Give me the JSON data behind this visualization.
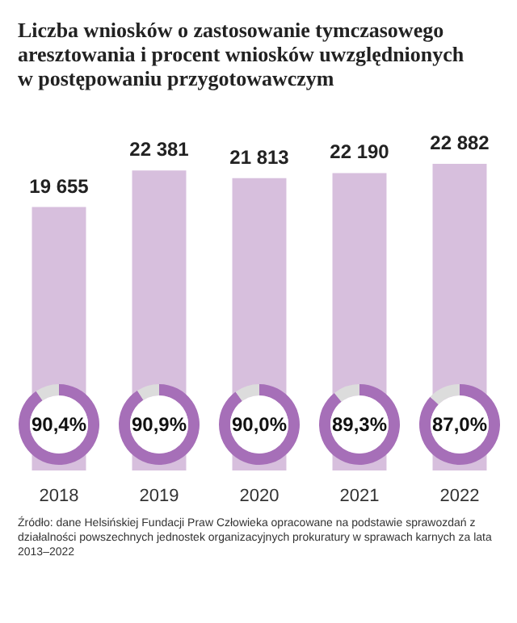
{
  "chart_data": [
    {
      "type": "bar",
      "title": "Liczba wniosków o zastosowanie tymczasowego aresztowania i procent wniosków uwzględnionych w postępowaniu przygotowawczym",
      "categories": [
        "2018",
        "2019",
        "2020",
        "2021",
        "2022"
      ],
      "values": [
        19655,
        22381,
        21813,
        22190,
        22882
      ],
      "value_labels": [
        "19 655",
        "22 381",
        "21 813",
        "22 190",
        "22 882"
      ],
      "color": "#d7bfdd",
      "annotations": [
        "Źródło: dane Helsińskiej Fundacji Praw Człowieka opracowane na podstawie sprawozdań z działalności powszechnych jednostek organizacyjnych prokuratury w sprawach karnych za lata 2013–2022"
      ]
    },
    {
      "type": "donut",
      "categories": [
        null,
        null
      ],
      "values": [
        90.4,
        9.6
      ],
      "colors": [
        "#a66fb8",
        "#dcdcdc"
      ],
      "value_labels": [
        "90,4%",
        null
      ]
    },
    {
      "type": "donut",
      "categories": [
        null,
        null
      ],
      "values": [
        90.9,
        9.1
      ],
      "colors": [
        "#a66fb8",
        "#dcdcdc"
      ],
      "value_labels": [
        "90,9%",
        null
      ]
    },
    {
      "type": "donut",
      "categories": [
        null,
        null
      ],
      "values": [
        90.0,
        10.0
      ],
      "colors": [
        "#a66fb8",
        "#dcdcdc"
      ],
      "value_labels": [
        "90,0%",
        null
      ]
    },
    {
      "type": "donut",
      "categories": [
        null,
        null
      ],
      "values": [
        89.3,
        10.7
      ],
      "colors": [
        "#a66fb8",
        "#dcdcdc"
      ],
      "value_labels": [
        "89,3%",
        null
      ]
    },
    {
      "type": "donut",
      "categories": [
        null,
        null
      ],
      "values": [
        87.0,
        13.0
      ],
      "colors": [
        "#a66fb8",
        "#dcdcdc"
      ],
      "value_labels": [
        "87,0%",
        null
      ]
    }
  ]
}
